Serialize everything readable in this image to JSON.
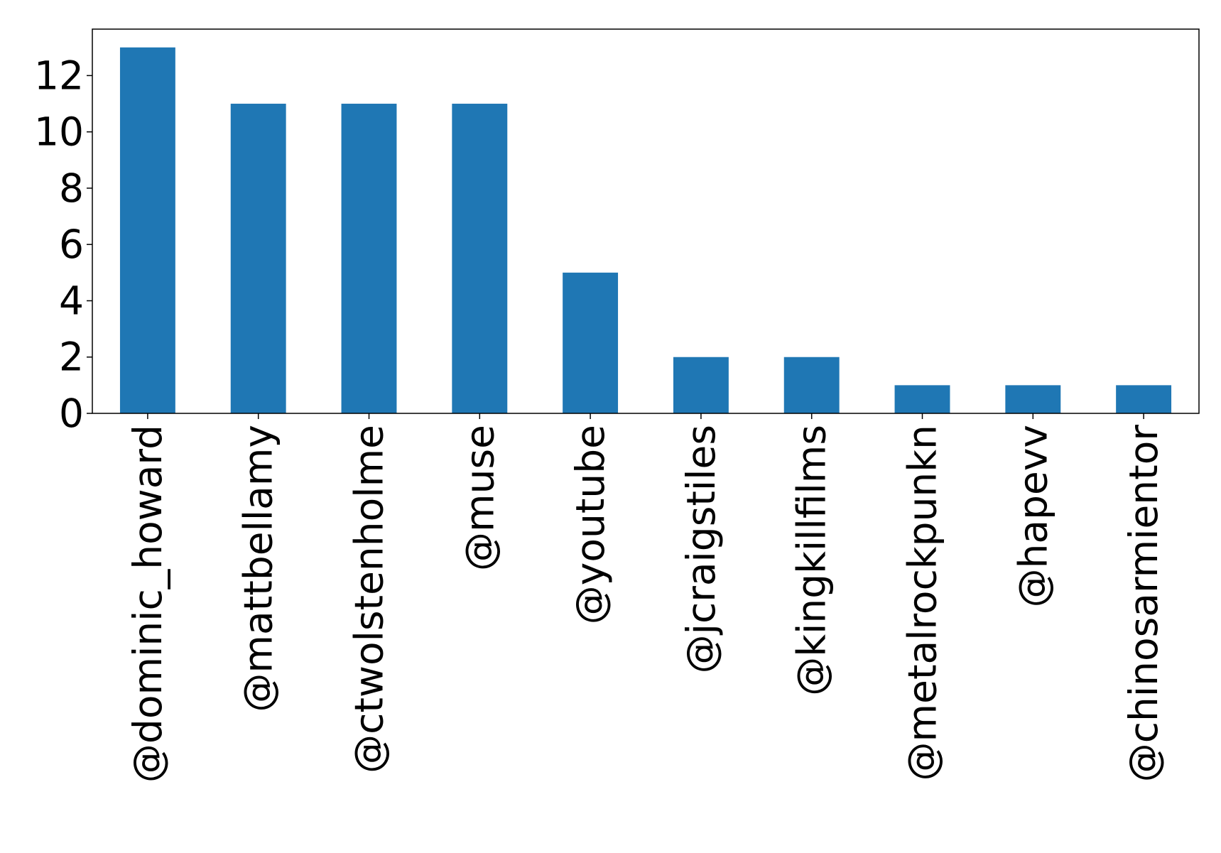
{
  "chart_data": {
    "type": "bar",
    "categories": [
      "@dominic_howard",
      "@mattbellamy",
      "@ctwolstenholme",
      "@muse",
      "@youtube",
      "@jcraigstiles",
      "@kingkillfilms",
      "@metalrockpunkn",
      "@hapevv",
      "@chinosarmientor"
    ],
    "values": [
      13,
      11,
      11,
      11,
      5,
      2,
      2,
      1,
      1,
      1
    ],
    "ylim": [
      0,
      13.65
    ],
    "yticks": [
      0,
      2,
      4,
      6,
      8,
      10,
      12
    ],
    "grid": false,
    "legend": "none",
    "bar_color": "#1f77b4"
  }
}
